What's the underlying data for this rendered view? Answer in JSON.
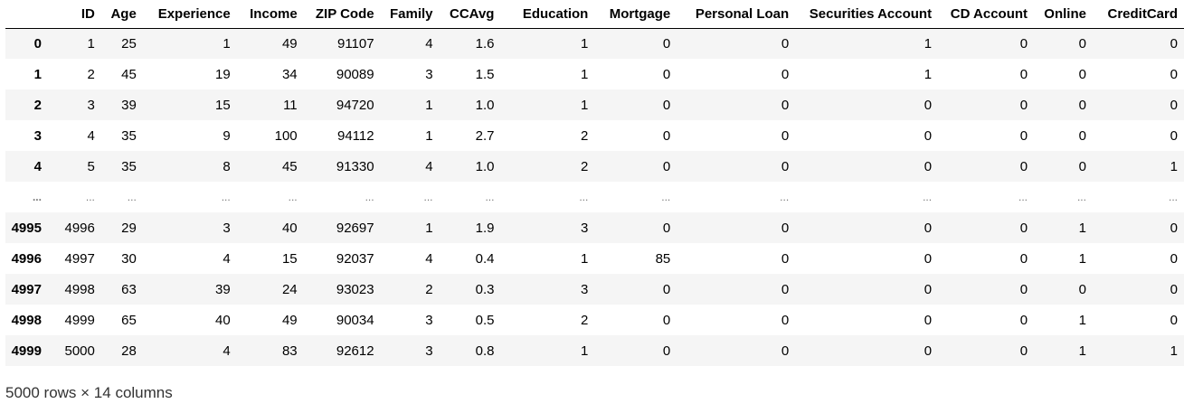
{
  "table": {
    "columns": [
      "ID",
      "Age",
      "Experience",
      "Income",
      "ZIP Code",
      "Family",
      "CCAvg",
      "Education",
      "Mortgage",
      "Personal Loan",
      "Securities Account",
      "CD Account",
      "Online",
      "CreditCard"
    ],
    "rows": [
      {
        "index": "0",
        "cells": [
          "1",
          "25",
          "1",
          "49",
          "91107",
          "4",
          "1.6",
          "1",
          "0",
          "0",
          "1",
          "0",
          "0",
          "0"
        ]
      },
      {
        "index": "1",
        "cells": [
          "2",
          "45",
          "19",
          "34",
          "90089",
          "3",
          "1.5",
          "1",
          "0",
          "0",
          "1",
          "0",
          "0",
          "0"
        ]
      },
      {
        "index": "2",
        "cells": [
          "3",
          "39",
          "15",
          "11",
          "94720",
          "1",
          "1.0",
          "1",
          "0",
          "0",
          "0",
          "0",
          "0",
          "0"
        ]
      },
      {
        "index": "3",
        "cells": [
          "4",
          "35",
          "9",
          "100",
          "94112",
          "1",
          "2.7",
          "2",
          "0",
          "0",
          "0",
          "0",
          "0",
          "0"
        ]
      },
      {
        "index": "4",
        "cells": [
          "5",
          "35",
          "8",
          "45",
          "91330",
          "4",
          "1.0",
          "2",
          "0",
          "0",
          "0",
          "0",
          "0",
          "1"
        ]
      },
      {
        "index": "...",
        "cells": [
          "...",
          "...",
          "...",
          "...",
          "...",
          "...",
          "...",
          "...",
          "...",
          "...",
          "...",
          "...",
          "...",
          "..."
        ]
      },
      {
        "index": "4995",
        "cells": [
          "4996",
          "29",
          "3",
          "40",
          "92697",
          "1",
          "1.9",
          "3",
          "0",
          "0",
          "0",
          "0",
          "1",
          "0"
        ]
      },
      {
        "index": "4996",
        "cells": [
          "4997",
          "30",
          "4",
          "15",
          "92037",
          "4",
          "0.4",
          "1",
          "85",
          "0",
          "0",
          "0",
          "1",
          "0"
        ]
      },
      {
        "index": "4997",
        "cells": [
          "4998",
          "63",
          "39",
          "24",
          "93023",
          "2",
          "0.3",
          "3",
          "0",
          "0",
          "0",
          "0",
          "0",
          "0"
        ]
      },
      {
        "index": "4998",
        "cells": [
          "4999",
          "65",
          "40",
          "49",
          "90034",
          "3",
          "0.5",
          "2",
          "0",
          "0",
          "0",
          "0",
          "1",
          "0"
        ]
      },
      {
        "index": "4999",
        "cells": [
          "5000",
          "28",
          "4",
          "83",
          "92612",
          "3",
          "0.8",
          "1",
          "0",
          "0",
          "0",
          "0",
          "1",
          "1"
        ]
      }
    ]
  },
  "shape_text": "5000 rows × 14 columns"
}
